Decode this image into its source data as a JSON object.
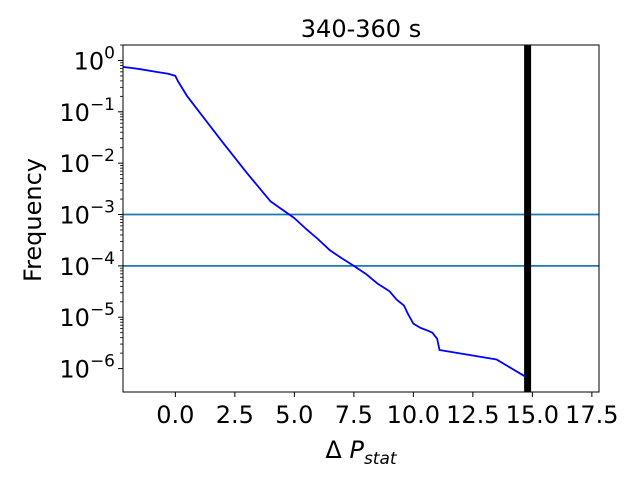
{
  "chart_data": {
    "type": "line",
    "title": "340-360 s",
    "xlabel": {
      "prefix": "Δ ",
      "main": "P",
      "subscript": "stat"
    },
    "ylabel": "Frequency",
    "y_scale": "log",
    "xlim": [
      -2.2,
      17.8
    ],
    "ylim": [
      3.5e-07,
      2.0
    ],
    "x_ticks": [
      0.0,
      2.5,
      5.0,
      7.5,
      10.0,
      12.5,
      15.0,
      17.5
    ],
    "x_tick_labels": [
      "0.0",
      "2.5",
      "5.0",
      "7.5",
      "10.0",
      "12.5",
      "15.0",
      "17.5"
    ],
    "y_ticks": [
      {
        "value": 1,
        "base": "10",
        "exp": "0"
      },
      {
        "value": 0.1,
        "base": "10",
        "exp": "−1"
      },
      {
        "value": 0.01,
        "base": "10",
        "exp": "−2"
      },
      {
        "value": 0.001,
        "base": "10",
        "exp": "−3"
      },
      {
        "value": 0.0001,
        "base": "10",
        "exp": "−4"
      },
      {
        "value": 1e-05,
        "base": "10",
        "exp": "−5"
      },
      {
        "value": 1e-06,
        "base": "10",
        "exp": "−6"
      }
    ],
    "series": [
      {
        "color": "#0000ff",
        "x": [
          -2.2,
          -1.5,
          -0.8,
          -0.3,
          0.0,
          0.1,
          0.5,
          1.0,
          2.0,
          3.0,
          4.0,
          5.0,
          5.5,
          6.0,
          6.5,
          7.0,
          7.5,
          8.0,
          8.5,
          9.0,
          9.3,
          9.6,
          9.8,
          10.0,
          10.3,
          10.6,
          10.8,
          11.0,
          11.1,
          13.5,
          14.7
        ],
        "y": [
          0.75,
          0.68,
          0.6,
          0.55,
          0.5,
          0.4,
          0.2,
          0.1,
          0.025,
          0.0065,
          0.0018,
          0.00085,
          0.00052,
          0.00033,
          0.0002,
          0.00014,
          0.0001,
          7e-05,
          4.5e-05,
          3.2e-05,
          2.2e-05,
          1.7e-05,
          1.1e-05,
          7.5e-06,
          6.2e-06,
          5.5e-06,
          5e-06,
          3.8e-06,
          2.3e-06,
          1.5e-06,
          7e-07
        ]
      }
    ],
    "hlines": [
      {
        "y": 0.001,
        "color": "#1f77b4"
      },
      {
        "y": 0.0001,
        "color": "#1f77b4"
      }
    ],
    "vlines": [
      {
        "x": 14.8,
        "color": "#000000"
      }
    ]
  }
}
